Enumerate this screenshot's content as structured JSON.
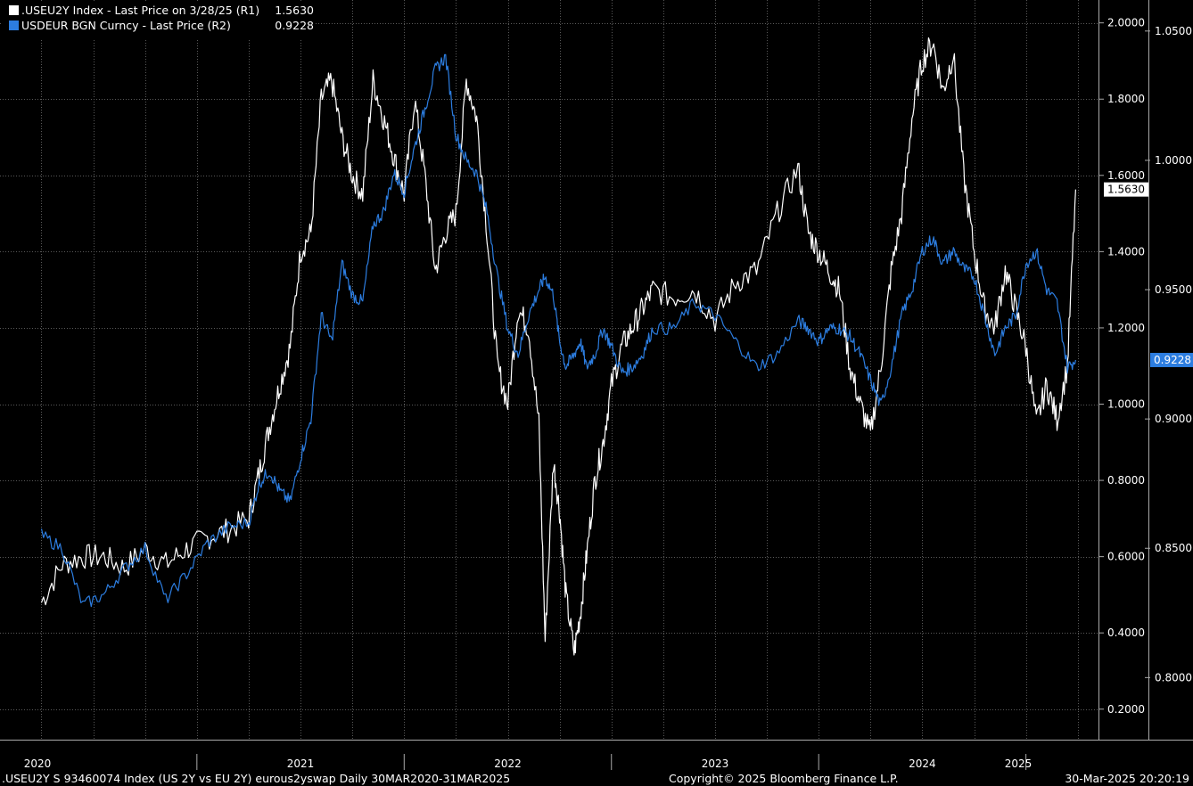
{
  "legend": [
    {
      "swatch_color": "#ffffff",
      "name": ".USEU2Y Index - Last Price on 3/28/25 (R1)",
      "value": "1.5630"
    },
    {
      "swatch_color": "#2c7de0",
      "name": "USDEUR BGN Curncy - Last Price (R2)",
      "value": "0.9228"
    }
  ],
  "footer": {
    "left": ".USEU2Y S 93460074 Index (US 2Y vs EU 2Y) eurous2yswap  Daily 30MAR2020-31MAR2025",
    "center": "Copyright© 2025 Bloomberg Finance L.P.",
    "right": "30-Mar-2025 20:20:19"
  },
  "chart_data": {
    "type": "line",
    "x_tick_labels": [
      "2020",
      "2021",
      "2022",
      "2023",
      "2024",
      "2025"
    ],
    "axes": {
      "R1": {
        "ticks": [
          "2.0000",
          "1.8000",
          "1.6000",
          "1.4000",
          "1.2000",
          "1.0000",
          "0.8000",
          "0.6000",
          "0.4000",
          "0.2000"
        ],
        "range": [
          0.12,
          2.06
        ]
      },
      "R2": {
        "ticks": [
          "1.0500",
          "1.0000",
          "0.9500",
          "0.9000",
          "0.8500",
          "0.8000"
        ],
        "range": [
          0.776,
          1.062
        ]
      }
    },
    "grid": true,
    "background": "#000000",
    "series": [
      {
        "name": ".USEU2Y Index",
        "axis": "R1",
        "color": "#ffffff",
        "last_label": "1.5630",
        "x": [
          2020.25,
          2020.35,
          2020.45,
          2020.55,
          2020.65,
          2020.75,
          2020.85,
          2020.95,
          2021.05,
          2021.15,
          2021.25,
          2021.3,
          2021.35,
          2021.4,
          2021.45,
          2021.5,
          2021.55,
          2021.6,
          2021.65,
          2021.7,
          2021.75,
          2021.8,
          2021.85,
          2021.9,
          2021.95,
          2022.0,
          2022.05,
          2022.1,
          2022.15,
          2022.2,
          2022.25,
          2022.3,
          2022.35,
          2022.4,
          2022.45,
          2022.5,
          2022.55,
          2022.6,
          2022.65,
          2022.68,
          2022.72,
          2022.75,
          2022.78,
          2022.82,
          2022.85,
          2022.88,
          2022.92,
          2022.96,
          2023.0,
          2023.05,
          2023.1,
          2023.15,
          2023.2,
          2023.3,
          2023.4,
          2023.5,
          2023.6,
          2023.7,
          2023.8,
          2023.9,
          2023.95,
          2024.0,
          2024.05,
          2024.1,
          2024.15,
          2024.2,
          2024.25,
          2024.3,
          2024.35,
          2024.4,
          2024.45,
          2024.5,
          2024.55,
          2024.6,
          2024.65,
          2024.7,
          2024.75,
          2024.8,
          2024.85,
          2024.9,
          2024.95,
          2025.0,
          2025.05,
          2025.1,
          2025.15,
          2025.2,
          2025.24
        ],
        "y": [
          0.48,
          0.58,
          0.6,
          0.6,
          0.57,
          0.62,
          0.58,
          0.62,
          0.65,
          0.67,
          0.7,
          0.82,
          0.94,
          1.05,
          1.15,
          1.4,
          1.45,
          1.8,
          1.85,
          1.7,
          1.6,
          1.55,
          1.85,
          1.75,
          1.65,
          1.55,
          1.8,
          1.6,
          1.35,
          1.45,
          1.5,
          1.85,
          1.75,
          1.45,
          1.1,
          1.0,
          1.25,
          1.2,
          0.95,
          0.38,
          0.85,
          0.72,
          0.5,
          0.35,
          0.45,
          0.6,
          0.8,
          0.9,
          1.05,
          1.15,
          1.2,
          1.25,
          1.3,
          1.28,
          1.3,
          1.22,
          1.32,
          1.35,
          1.5,
          1.62,
          1.45,
          1.4,
          1.35,
          1.3,
          1.1,
          1.0,
          0.92,
          1.1,
          1.35,
          1.5,
          1.75,
          1.9,
          1.95,
          1.82,
          1.92,
          1.6,
          1.4,
          1.25,
          1.2,
          1.35,
          1.25,
          1.15,
          0.95,
          1.05,
          0.96,
          1.1,
          1.563
        ]
      },
      {
        "name": "USDEUR BGN Curncy",
        "axis": "R2",
        "color": "#2c7de0",
        "last_label": "0.9228",
        "x": [
          2020.25,
          2020.35,
          2020.45,
          2020.55,
          2020.65,
          2020.75,
          2020.85,
          2020.95,
          2021.05,
          2021.15,
          2021.25,
          2021.3,
          2021.35,
          2021.4,
          2021.45,
          2021.5,
          2021.55,
          2021.6,
          2021.65,
          2021.7,
          2021.75,
          2021.8,
          2021.85,
          2021.9,
          2021.95,
          2022.0,
          2022.05,
          2022.1,
          2022.15,
          2022.2,
          2022.25,
          2022.3,
          2022.35,
          2022.4,
          2022.45,
          2022.5,
          2022.55,
          2022.6,
          2022.65,
          2022.68,
          2022.72,
          2022.75,
          2022.78,
          2022.82,
          2022.85,
          2022.88,
          2022.92,
          2022.96,
          2023.0,
          2023.05,
          2023.1,
          2023.15,
          2023.2,
          2023.3,
          2023.4,
          2023.5,
          2023.6,
          2023.7,
          2023.8,
          2023.9,
          2023.95,
          2024.0,
          2024.05,
          2024.1,
          2024.15,
          2024.2,
          2024.25,
          2024.3,
          2024.35,
          2024.4,
          2024.45,
          2024.5,
          2024.55,
          2024.6,
          2024.65,
          2024.7,
          2024.75,
          2024.8,
          2024.85,
          2024.9,
          2024.95,
          2025.0,
          2025.05,
          2025.1,
          2025.15,
          2025.2,
          2025.24
        ],
        "y": [
          0.855,
          0.85,
          0.828,
          0.832,
          0.842,
          0.85,
          0.83,
          0.84,
          0.852,
          0.858,
          0.86,
          0.875,
          0.88,
          0.872,
          0.868,
          0.885,
          0.9,
          0.94,
          0.93,
          0.96,
          0.948,
          0.945,
          0.975,
          0.98,
          0.995,
          0.988,
          1.005,
          1.02,
          1.035,
          1.04,
          1.01,
          1.0,
          0.995,
          0.98,
          0.955,
          0.935,
          0.925,
          0.94,
          0.95,
          0.955,
          0.948,
          0.93,
          0.92,
          0.925,
          0.93,
          0.92,
          0.925,
          0.935,
          0.928,
          0.918,
          0.92,
          0.925,
          0.935,
          0.935,
          0.945,
          0.94,
          0.93,
          0.92,
          0.925,
          0.938,
          0.935,
          0.93,
          0.935,
          0.935,
          0.932,
          0.925,
          0.915,
          0.905,
          0.92,
          0.94,
          0.95,
          0.965,
          0.97,
          0.96,
          0.965,
          0.958,
          0.955,
          0.94,
          0.925,
          0.935,
          0.94,
          0.96,
          0.965,
          0.95,
          0.945,
          0.92,
          0.9228
        ]
      }
    ]
  }
}
